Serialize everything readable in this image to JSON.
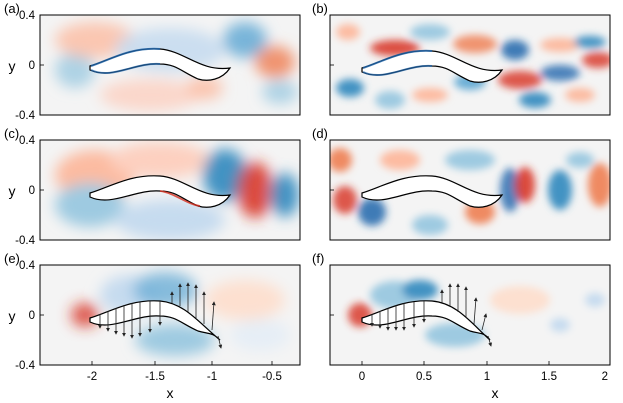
{
  "figure": {
    "panel_labels": [
      "(a)",
      "(b)",
      "(c)",
      "(d)",
      "(e)",
      "(f)"
    ],
    "y_axis_label": "y",
    "x_axis_label": "x",
    "colors": {
      "positive": "#d7301f",
      "negative": "#2166ac",
      "neutral": "#f4f4f4",
      "frame": "#000000"
    }
  },
  "chart_data": [
    {
      "type": "heatmap",
      "panel": "(a)",
      "title": "",
      "xlabel": "",
      "ylabel": "y",
      "xlim": [
        -2.3,
        -0.3
      ],
      "ylim": [
        -0.4,
        0.4
      ],
      "y_ticks": [
        "0.4",
        "0",
        "-0.4"
      ],
      "x_ticks": [],
      "annotations": [
        "flow field around undulating foil, left column"
      ]
    },
    {
      "type": "heatmap",
      "panel": "(b)",
      "title": "",
      "xlabel": "",
      "ylabel": "",
      "xlim": [
        -0.3,
        2.0
      ],
      "ylim": [
        -0.4,
        0.4
      ],
      "y_ticks": [],
      "x_ticks": [],
      "annotations": [
        "flow field around undulating foil, right column"
      ]
    },
    {
      "type": "heatmap",
      "panel": "(c)",
      "title": "",
      "xlabel": "",
      "ylabel": "y",
      "xlim": [
        -2.3,
        -0.3
      ],
      "ylim": [
        -0.4,
        0.4
      ],
      "y_ticks": [
        "0.4",
        "0",
        "-0.4"
      ],
      "x_ticks": []
    },
    {
      "type": "heatmap",
      "panel": "(d)",
      "title": "",
      "xlabel": "",
      "ylabel": "",
      "xlim": [
        -0.3,
        2.0
      ],
      "ylim": [
        -0.4,
        0.4
      ],
      "y_ticks": [],
      "x_ticks": []
    },
    {
      "type": "heatmap",
      "panel": "(e)",
      "title": "",
      "xlabel": "x",
      "ylabel": "y",
      "xlim": [
        -2.3,
        -0.3
      ],
      "ylim": [
        -0.4,
        0.4
      ],
      "y_ticks": [
        "0.4",
        "0",
        "-0.4"
      ],
      "x_ticks": [
        "-2",
        "-1.5",
        "-1",
        "-0.5"
      ],
      "annotations": [
        "body-surface force vectors drawn as arrows"
      ]
    },
    {
      "type": "heatmap",
      "panel": "(f)",
      "title": "",
      "xlabel": "x",
      "ylabel": "",
      "xlim": [
        -0.3,
        2.0
      ],
      "ylim": [
        -0.4,
        0.4
      ],
      "y_ticks": [],
      "x_ticks": [
        "0",
        "0.5",
        "1",
        "1.5",
        "2"
      ],
      "annotations": [
        "body-surface force vectors drawn as arrows"
      ]
    }
  ]
}
